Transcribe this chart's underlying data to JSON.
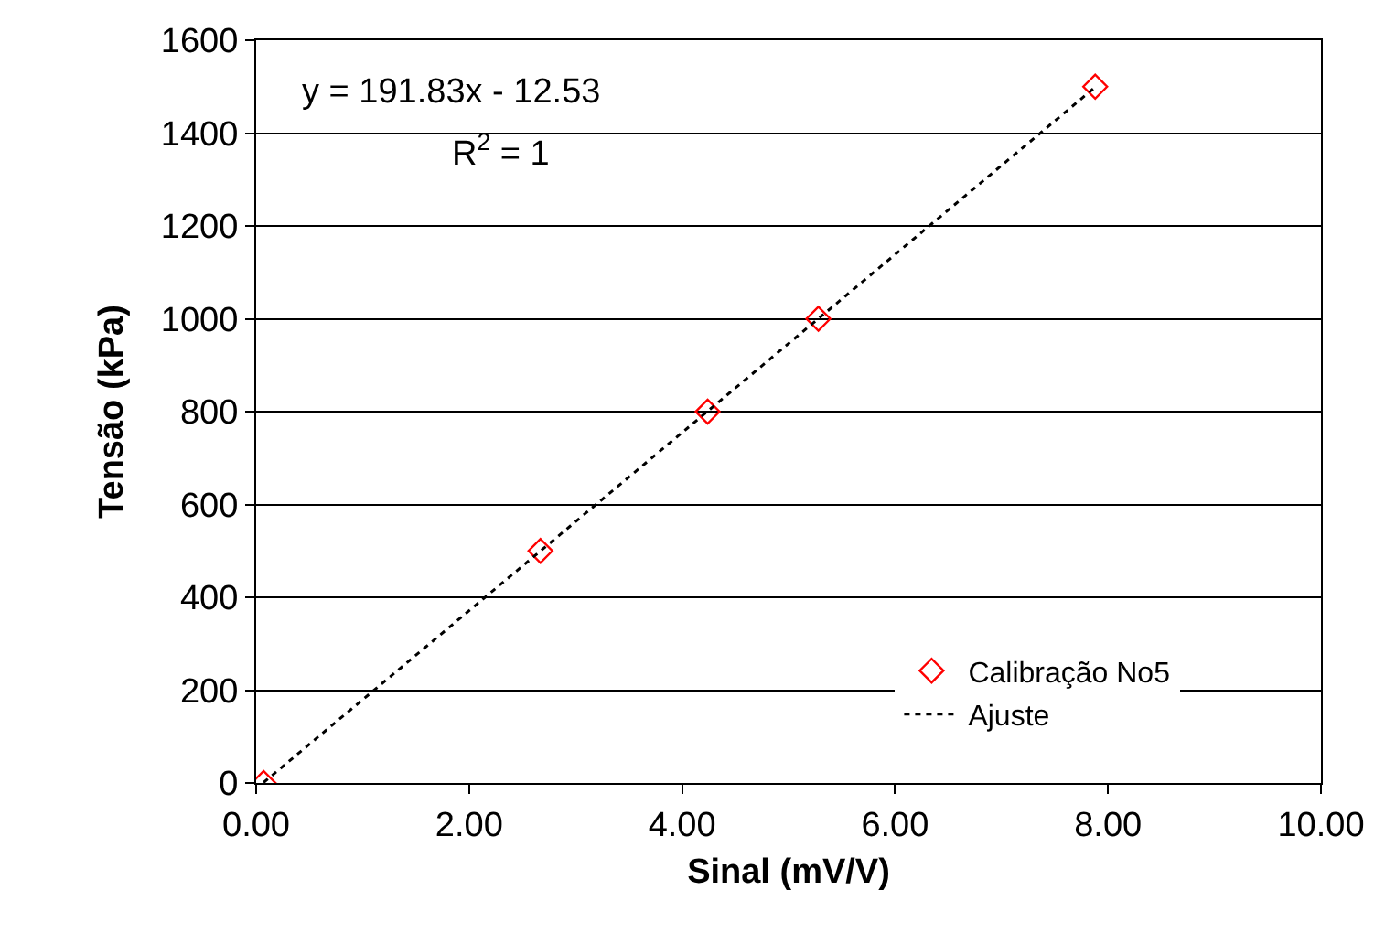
{
  "chart_data": {
    "type": "scatter",
    "xlabel": "Sinal (mV/V)",
    "ylabel": "Tensão (kPa)",
    "xlim": [
      0,
      10
    ],
    "xticks": [
      {
        "value": 0,
        "label": "0.00"
      },
      {
        "value": 2,
        "label": "2.00"
      },
      {
        "value": 4,
        "label": "4.00"
      },
      {
        "value": 6,
        "label": "6.00"
      },
      {
        "value": 8,
        "label": "8.00"
      },
      {
        "value": 10,
        "label": "10.00"
      }
    ],
    "ylim": [
      0,
      1600
    ],
    "yticks": [
      0,
      200,
      400,
      600,
      800,
      1000,
      1200,
      1400,
      1600
    ],
    "grid": "y",
    "legend": "bottom right",
    "annotations": [
      "y = 191.83x - 12.53",
      "R$^{2}$ = 1"
    ],
    "series": [
      {
        "name": "Calibração No5",
        "color": "#ff0000",
        "marker": "diamond",
        "x": [
          0.07,
          2.67,
          4.24,
          5.28,
          7.88
        ],
        "values": [
          0,
          500,
          800,
          1000,
          1500
        ]
      },
      {
        "name": "Ajuste",
        "type": "line",
        "color": "#000000",
        "line_style": "dotted",
        "x": [
          0.07,
          7.88
        ],
        "values": [
          1,
          1499
        ]
      }
    ]
  }
}
